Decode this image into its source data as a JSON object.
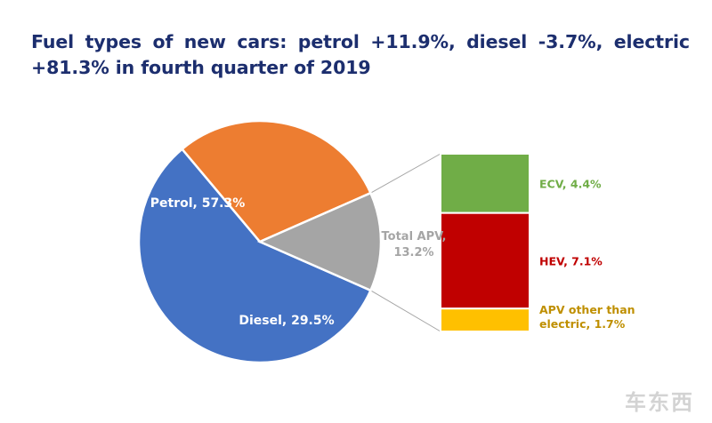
{
  "title": "Fuel types of new cars: petrol +11.9%, diesel -3.7%, electric +81.3% in fourth quarter of 2019",
  "chart_data": [
    {
      "type": "pie",
      "slices": [
        {
          "name": "Petrol",
          "value": 57.3,
          "label": "Petrol, 57.3%",
          "color": "#4472c4",
          "label_color": "#ffffff"
        },
        {
          "name": "Diesel",
          "value": 29.5,
          "label": "Diesel, 29.5%",
          "color": "#ed7d31",
          "label_color": "#ffffff"
        },
        {
          "name": "Total APV",
          "value": 13.2,
          "label": [
            "Total APV,",
            "13.2%"
          ],
          "color": "#a5a5a5",
          "label_color": "#a5a5a5"
        }
      ]
    },
    {
      "type": "bar",
      "stacked": true,
      "series": [
        {
          "name": "ECV",
          "value": 4.4,
          "label": "ECV, 4.4%",
          "color": "#70ad47",
          "label_color": "#70ad47"
        },
        {
          "name": "HEV",
          "value": 7.1,
          "label": "HEV, 7.1%",
          "color": "#c00000",
          "label_color": "#c00000"
        },
        {
          "name": "APV other than electric",
          "value": 1.7,
          "label": [
            "APV other than",
            "electric, 1.7%"
          ],
          "color": "#ffc000",
          "label_color": "#bf8f00"
        }
      ]
    }
  ],
  "watermark": "车东西"
}
